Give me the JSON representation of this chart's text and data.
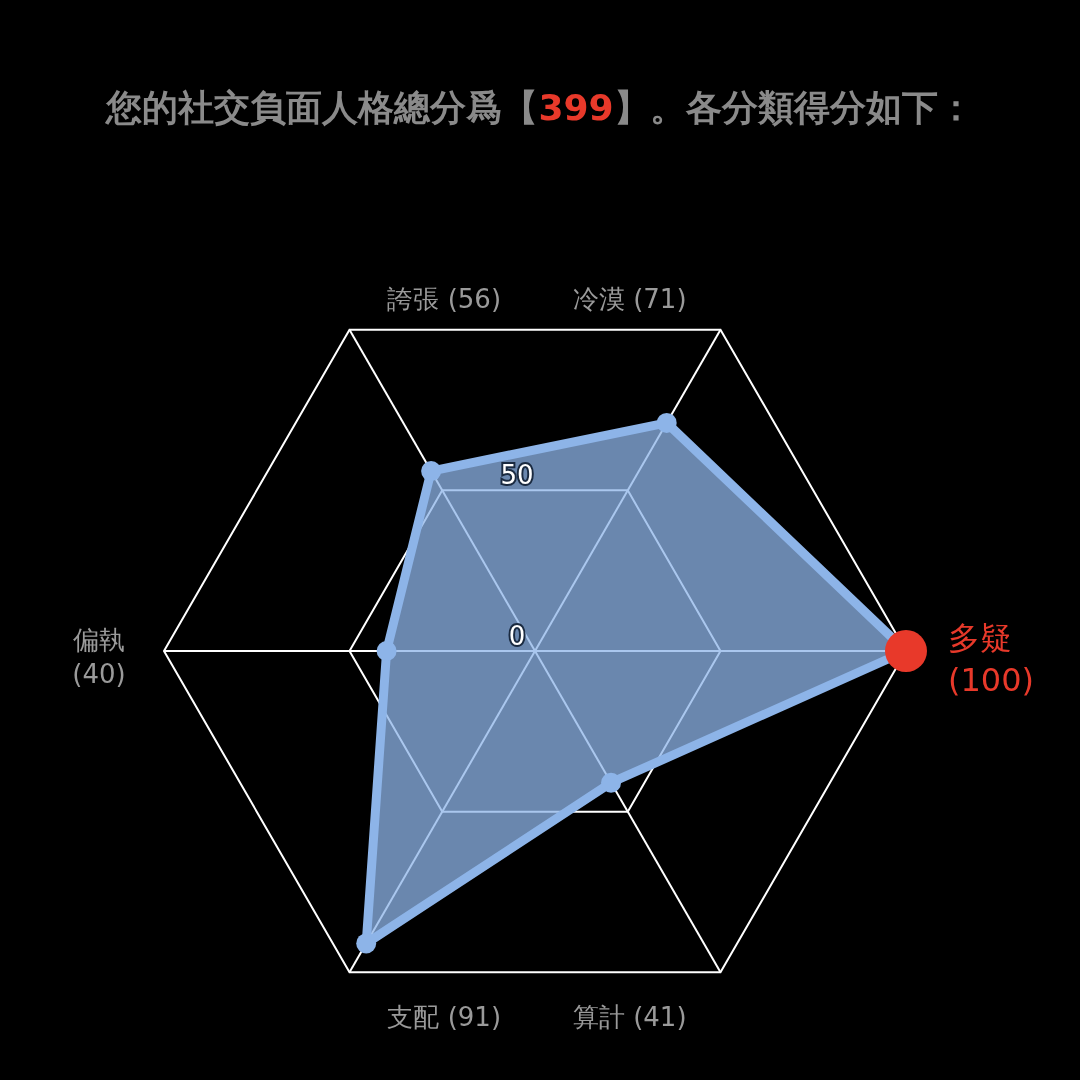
{
  "chart_data": {
    "type": "radar",
    "title": "您的社交負面人格總分爲【399】。各分類得分如下：",
    "categories": [
      "冷漠 (71)",
      "多疑 (100)",
      "算計 (41)",
      "支配 (91)",
      "偏執 (40)",
      "誇張 (56)"
    ],
    "series": [
      {
        "color": "#8db4e8",
        "values": [
          71,
          100,
          41,
          91,
          40,
          56
        ],
        "colors": [
          "#8db4e8",
          "#e8392a",
          "#8db4e8",
          "#8db4e8",
          "#8db4e8",
          "#8db4e8"
        ]
      }
    ],
    "ylim": [
      0,
      100
    ],
    "yticks": [
      0,
      50
    ],
    "marker": "circle"
  }
}
